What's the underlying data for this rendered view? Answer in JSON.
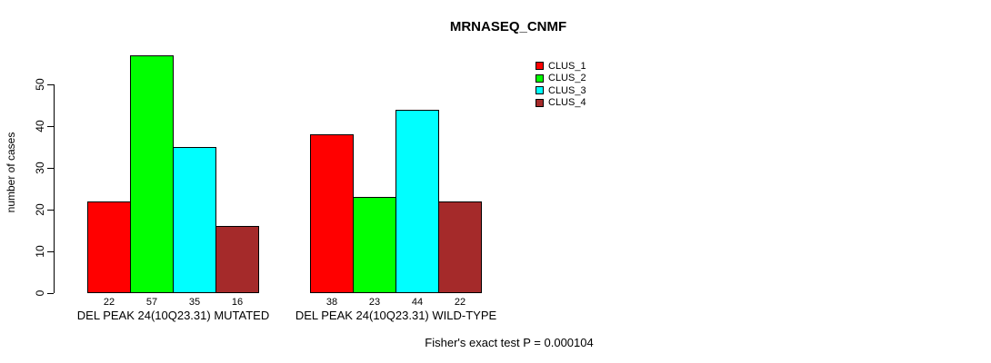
{
  "chart_data": {
    "type": "bar",
    "title": "MRNASEQ_CNMF",
    "ylabel": "number of cases",
    "yticks": [
      0,
      10,
      20,
      30,
      40,
      50
    ],
    "ylim": [
      0,
      57
    ],
    "grid": false,
    "legend_position": "top-right",
    "categories": [
      "DEL PEAK 24(10Q23.31) MUTATED",
      "DEL PEAK 24(10Q23.31) WILD-TYPE"
    ],
    "series": [
      {
        "name": "CLUS_1",
        "color": "#FF0000",
        "values": [
          22,
          38
        ]
      },
      {
        "name": "CLUS_2",
        "color": "#00FF00",
        "values": [
          57,
          23
        ]
      },
      {
        "name": "CLUS_3",
        "color": "#00FFFF",
        "values": [
          35,
          44
        ]
      },
      {
        "name": "CLUS_4",
        "color": "#A52A2A",
        "values": [
          16,
          22
        ]
      }
    ],
    "bar_value_labels": true,
    "annotation": "Fisher's exact test P = 0.000104"
  }
}
